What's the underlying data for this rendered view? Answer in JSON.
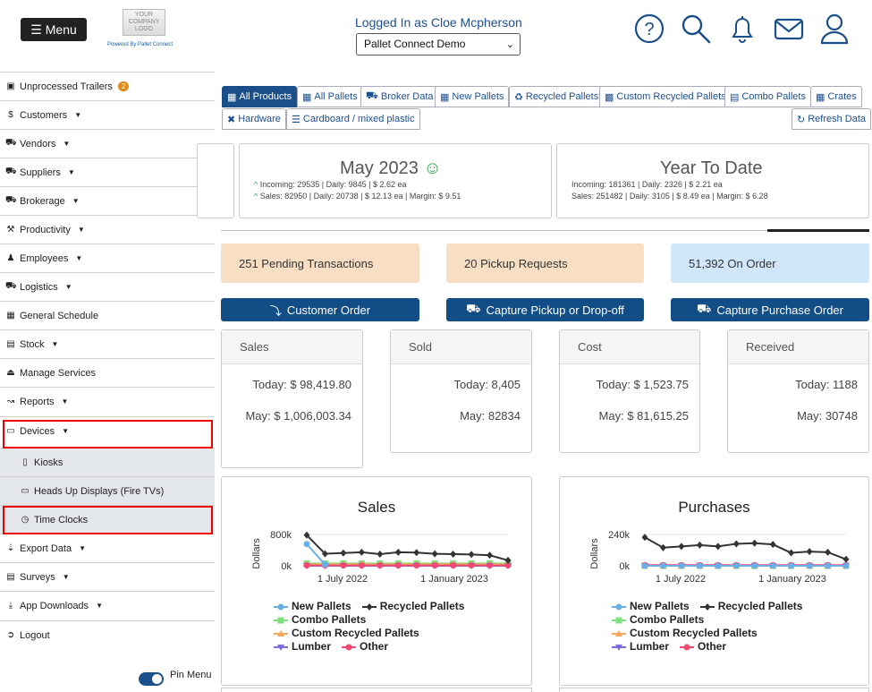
{
  "header": {
    "menu_label": "Menu",
    "logo_text": "YOUR COMPANY LOGO",
    "powered_by": "Powered By Pallet Connect",
    "logged_in": "Logged In as Cloe Mcpherson",
    "company_selected": "Pallet Connect Demo",
    "icons": [
      "help-icon",
      "search-icon",
      "bell-icon",
      "mail-icon",
      "user-icon"
    ]
  },
  "sidebar": {
    "items": [
      {
        "label": "Unprocessed Trailers",
        "badge": "2",
        "icon": "trailer-icon"
      },
      {
        "label": "Customers",
        "icon": "dollar-icon"
      },
      {
        "label": "Vendors",
        "icon": "truck-icon"
      },
      {
        "label": "Suppliers",
        "icon": "truck-icon"
      },
      {
        "label": "Brokerage",
        "icon": "truck-icon"
      },
      {
        "label": "Productivity",
        "icon": "hammer-icon"
      },
      {
        "label": "Employees",
        "icon": "person-icon"
      },
      {
        "label": "Logistics",
        "icon": "truck-icon"
      },
      {
        "label": "General Schedule",
        "icon": "calendar-icon"
      },
      {
        "label": "Stock",
        "icon": "pallet-icon"
      },
      {
        "label": "Manage Services",
        "icon": "eject-icon"
      },
      {
        "label": "Reports",
        "icon": "chart-icon"
      },
      {
        "label": "Devices",
        "icon": "monitor-icon"
      },
      {
        "label": "Kiosks",
        "icon": "tablet-icon"
      },
      {
        "label": "Heads Up Displays (Fire TVs)",
        "icon": "monitor-icon"
      },
      {
        "label": "Time Clocks",
        "icon": "clock-icon"
      },
      {
        "label": "Export Data",
        "icon": "export-icon"
      },
      {
        "label": "Surveys",
        "icon": "clipboard-icon"
      },
      {
        "label": "App Downloads",
        "icon": "download-icon"
      },
      {
        "label": "Logout",
        "icon": "logout-icon"
      }
    ],
    "pin_label": "Pin Menu"
  },
  "tabs": [
    {
      "label": "All Products"
    },
    {
      "label": "All Pallets"
    },
    {
      "label": "Broker Data"
    },
    {
      "label": "New Pallets"
    },
    {
      "label": "Recycled Pallets"
    },
    {
      "label": "Custom Recycled Pallets"
    },
    {
      "label": "Combo Pallets"
    },
    {
      "label": "Crates"
    },
    {
      "label": "Hardware"
    },
    {
      "label": "Cardboard / mixed plastic"
    },
    {
      "label": "Refresh Data"
    }
  ],
  "month": {
    "title": "May 2023",
    "incoming": "Incoming: 29535 | Daily: 9845 | $ 2.62 ea",
    "sales": "Sales: 82950 | Daily: 20738 | $ 12.13 ea | Margin: $ 9.51"
  },
  "ytd": {
    "title": "Year To Date",
    "incoming": "Incoming: 181361 | Daily: 2326 | $ 2.21 ea",
    "sales": "Sales: 251482 | Daily: 3105 | $ 8.49 ea | Margin: $ 6.28"
  },
  "status": {
    "pending": "251 Pending Transactions",
    "pickup": "20 Pickup Requests",
    "order": "51,392 On Order",
    "colors": {
      "pending": "#f8dfc4",
      "pickup": "#f8dfc4",
      "order": "#cfe6fb"
    }
  },
  "actions": {
    "customer_order": "Customer Order",
    "capture_pickup": "Capture Pickup or Drop-off",
    "capture_po": "Capture Purchase Order"
  },
  "stats": [
    {
      "title": "Sales",
      "today": "Today: $ 98,419.80",
      "month": "May: $ 1,006,003.34"
    },
    {
      "title": "Sold",
      "today": "Today: 8,405",
      "month": "May: 82834"
    },
    {
      "title": "Cost",
      "today": "Today: $ 1,523.75",
      "month": "May: $ 81,615.25"
    },
    {
      "title": "Received",
      "today": "Today: 1188",
      "month": "May: 30748"
    }
  ],
  "chart_data": [
    {
      "type": "line",
      "title": "Sales",
      "ylabel": "Dollars",
      "ytick_labels": [
        "800k",
        "0k"
      ],
      "ylim": [
        0,
        900000
      ],
      "xtick_labels": [
        "1 July 2022",
        "1 January 2023"
      ],
      "x_count": 12,
      "series": [
        {
          "name": "New Pallets",
          "color": "#6aaee8",
          "values": [
            560000,
            30000,
            null,
            null,
            null,
            null,
            null,
            null,
            null,
            null,
            null,
            null
          ]
        },
        {
          "name": "Recycled Pallets",
          "color": "#333333",
          "values": [
            790000,
            310000,
            330000,
            350000,
            300000,
            350000,
            340000,
            310000,
            300000,
            290000,
            270000,
            140000
          ]
        },
        {
          "name": "Combo Pallets",
          "color": "#7ee07e",
          "values": [
            60000,
            60000,
            60000,
            60000,
            60000,
            60000,
            60000,
            60000,
            60000,
            60000,
            60000,
            60000
          ]
        },
        {
          "name": "Custom Recycled Pallets",
          "color": "#f4a65a",
          "values": [
            40000,
            40000,
            40000,
            40000,
            40000,
            40000,
            40000,
            40000,
            40000,
            40000,
            40000,
            40000
          ]
        },
        {
          "name": "Lumber",
          "color": "#7b6be0",
          "values": [
            0,
            0,
            0,
            0,
            0,
            0,
            0,
            0,
            0,
            0,
            0,
            0
          ]
        },
        {
          "name": "Other",
          "color": "#f04870",
          "values": [
            10000,
            10000,
            10000,
            10000,
            10000,
            10000,
            10000,
            10000,
            10000,
            10000,
            10000,
            10000
          ]
        }
      ]
    },
    {
      "type": "line",
      "title": "Purchases",
      "ylabel": "Dollars",
      "ytick_labels": [
        "240k",
        "0k"
      ],
      "ylim": [
        0,
        270000
      ],
      "xtick_labels": [
        "1 July 2022",
        "1 January 2023"
      ],
      "x_count": 12,
      "series": [
        {
          "name": "New Pallets",
          "color": "#6aaee8",
          "values": [
            0,
            0,
            0,
            0,
            0,
            0,
            0,
            0,
            0,
            0,
            0,
            0
          ]
        },
        {
          "name": "Recycled Pallets",
          "color": "#333333",
          "values": [
            220000,
            140000,
            150000,
            160000,
            150000,
            170000,
            175000,
            165000,
            100000,
            110000,
            105000,
            50000
          ]
        },
        {
          "name": "Combo Pallets",
          "color": "#7ee07e",
          "values": [
            0,
            0,
            0,
            0,
            0,
            0,
            0,
            0,
            0,
            0,
            0,
            0
          ]
        },
        {
          "name": "Custom Recycled Pallets",
          "color": "#f4a65a",
          "values": [
            0,
            0,
            0,
            0,
            0,
            0,
            0,
            0,
            0,
            0,
            0,
            0
          ]
        },
        {
          "name": "Lumber",
          "color": "#7b6be0",
          "values": [
            0,
            0,
            0,
            0,
            0,
            0,
            0,
            0,
            0,
            0,
            0,
            0
          ]
        },
        {
          "name": "Other",
          "color": "#f04870",
          "values": [
            5000,
            5000,
            5000,
            5000,
            5000,
            5000,
            5000,
            5000,
            5000,
            5000,
            5000,
            5000
          ]
        }
      ]
    }
  ]
}
